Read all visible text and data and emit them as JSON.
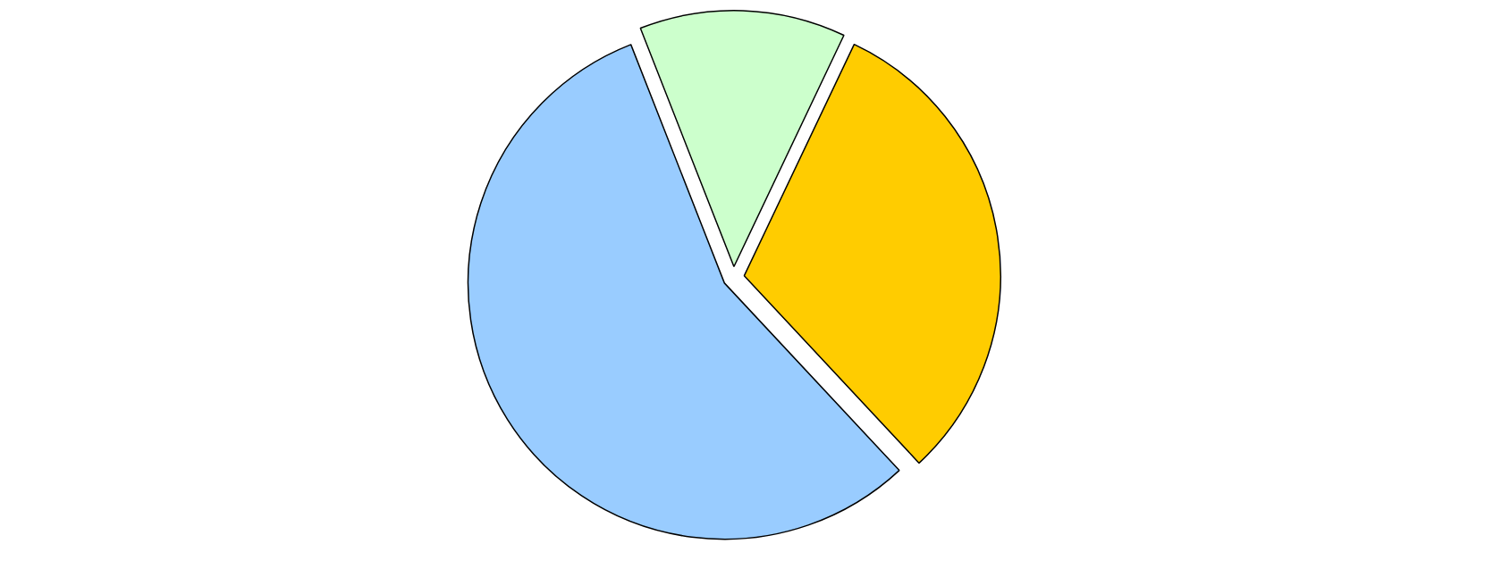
{
  "chart_data": {
    "type": "pie",
    "categories": [
      null,
      null,
      null
    ],
    "values": [
      31,
      13,
      56
    ],
    "colors": [
      "#ffcc00",
      "#ccffcc",
      "#99ccff"
    ]
  }
}
